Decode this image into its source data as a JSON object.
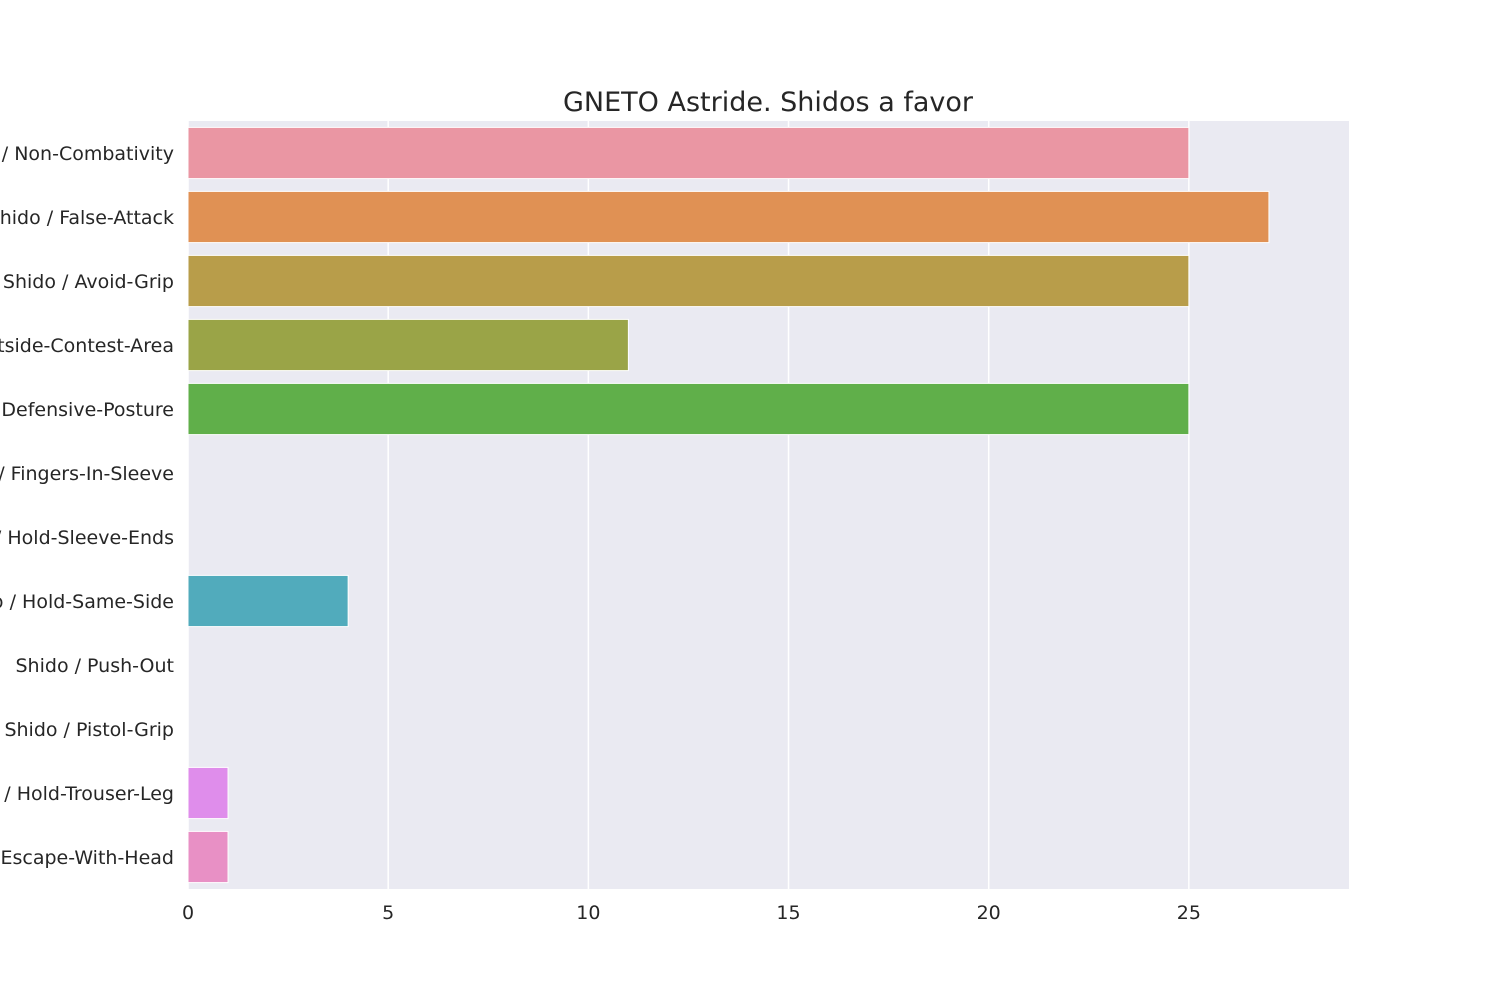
{
  "chart_data": {
    "type": "bar",
    "orientation": "horizontal",
    "title": "GNETO Astride. Shidos a favor",
    "xlabel": "",
    "ylabel": "",
    "xlim": [
      0,
      29
    ],
    "xticks": [
      0,
      5,
      10,
      15,
      20,
      25
    ],
    "grid": true,
    "legend": "none",
    "categories": [
      "Shido / Non-Combativity",
      "Shido / False-Attack",
      "Shido / Avoid-Grip",
      "Shido / Outside-Contest-Area",
      "Shido / Defensive-Posture",
      "Shido / Fingers-In-Sleeve",
      "Shido / Hold-Sleeve-Ends",
      "Shido / Hold-Same-Side",
      "Shido / Push-Out",
      "Shido / Pistol-Grip",
      "Shido / Hold-Trouser-Leg",
      "Shido / Escape-With-Head"
    ],
    "values": [
      25,
      27,
      25,
      11,
      25,
      0,
      0,
      4,
      0,
      0,
      1,
      1
    ],
    "colors": [
      "#ea96a3",
      "#e09154",
      "#b89d4a",
      "#9aa447",
      "#60af4a",
      "#56ad74",
      "#58ab9c",
      "#51abbc",
      "#62a7e2",
      "#ab9eee",
      "#df8deb",
      "#e890c5"
    ],
    "background": "#eaeaf2",
    "grid_color": "#ffffff"
  }
}
